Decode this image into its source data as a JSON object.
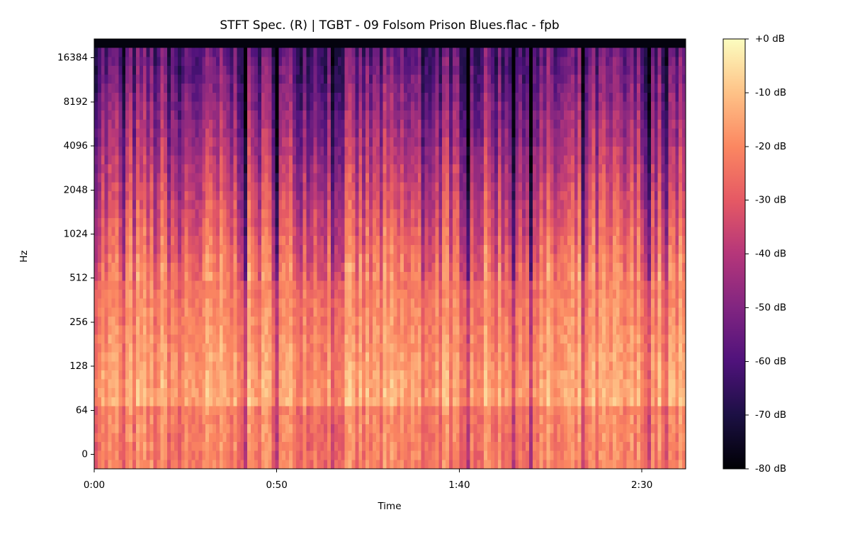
{
  "chart_data": {
    "type": "spectrogram",
    "title": "STFT Spec. (R) | TGBT - 09 Folsom Prison Blues.flac - fpb",
    "x_label": "Time",
    "y_label": "Hz",
    "xlim": [
      0,
      162
    ],
    "xticks": [
      {
        "value": 0,
        "label": "0:00"
      },
      {
        "value": 50,
        "label": "0:50"
      },
      {
        "value": 100,
        "label": "1:40"
      },
      {
        "value": 150,
        "label": "2:30"
      }
    ],
    "yscale": "symlog",
    "linthresh": 64,
    "ylim": [
      -21,
      22050
    ],
    "yticks": [
      0,
      64,
      128,
      256,
      512,
      1024,
      2048,
      4096,
      8192,
      16384
    ],
    "colorbar": {
      "clim": [
        -80,
        0
      ],
      "ticks": [
        {
          "value": 0,
          "label": "+0 dB"
        },
        {
          "value": -10,
          "label": "-10 dB"
        },
        {
          "value": -20,
          "label": "-20 dB"
        },
        {
          "value": -30,
          "label": "-30 dB"
        },
        {
          "value": -40,
          "label": "-40 dB"
        },
        {
          "value": -50,
          "label": "-50 dB"
        },
        {
          "value": -60,
          "label": "-60 dB"
        },
        {
          "value": -70,
          "label": "-70 dB"
        },
        {
          "value": -80,
          "label": "-80 dB"
        }
      ]
    }
  }
}
